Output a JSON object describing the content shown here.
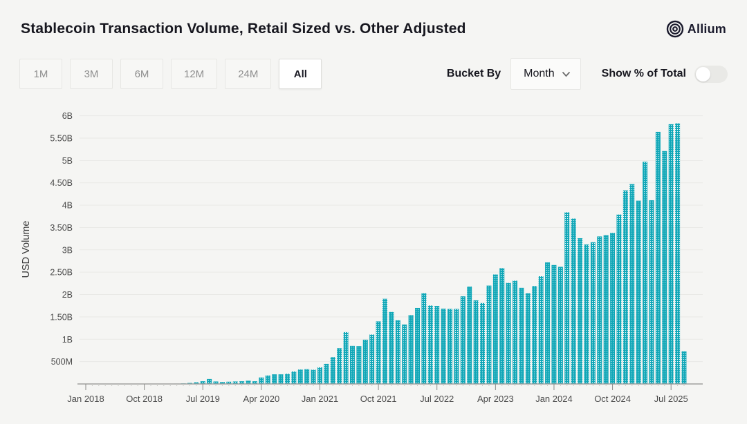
{
  "header": {
    "title": "Stablecoin Transaction Volume, Retail Sized vs. Other Adjusted",
    "logo_text": "Allium"
  },
  "controls": {
    "range_buttons": [
      {
        "label": "1M",
        "selected": false
      },
      {
        "label": "3M",
        "selected": false
      },
      {
        "label": "6M",
        "selected": false
      },
      {
        "label": "12M",
        "selected": false
      },
      {
        "label": "24M",
        "selected": false
      },
      {
        "label": "All",
        "selected": true
      }
    ],
    "bucket_by_label": "Bucket By",
    "bucket_by_value": "Month",
    "show_pct_label": "Show % of Total",
    "show_pct_toggle_on": false
  },
  "chart_data": {
    "type": "bar",
    "ylabel": "USD Volume",
    "bar_color": "#10a7b7",
    "bar_pattern": "white-dot-grid",
    "grid_color": "#e9e9e6",
    "axis_color": "#a0a09e",
    "label_color": "#4a4a4a",
    "ylim_millions": [
      0,
      6200
    ],
    "x_tick_every": 9,
    "x_tick_labels": [
      "Jan 2018",
      "Oct 2018",
      "Jul 2019",
      "Apr 2020",
      "Jan 2021",
      "Oct 2021",
      "Jul 2022",
      "Apr 2023",
      "Jan 2024",
      "Oct 2024",
      "Jul 2025"
    ],
    "y_ticks": [
      {
        "label": "500M",
        "millions": 500
      },
      {
        "label": "1B",
        "millions": 1000
      },
      {
        "label": "1.50B",
        "millions": 1500
      },
      {
        "label": "2B",
        "millions": 2000
      },
      {
        "label": "2.50B",
        "millions": 2500
      },
      {
        "label": "3B",
        "millions": 3000
      },
      {
        "label": "3.50B",
        "millions": 3500
      },
      {
        "label": "4B",
        "millions": 4000
      },
      {
        "label": "4.50B",
        "millions": 4500
      },
      {
        "label": "5B",
        "millions": 5000
      },
      {
        "label": "5.50B",
        "millions": 5500
      },
      {
        "label": "6B",
        "millions": 6000
      }
    ],
    "categories": [
      "Jan 2018",
      "Feb 2018",
      "Mar 2018",
      "Apr 2018",
      "May 2018",
      "Jun 2018",
      "Jul 2018",
      "Aug 2018",
      "Sep 2018",
      "Oct 2018",
      "Nov 2018",
      "Dec 2018",
      "Jan 2019",
      "Feb 2019",
      "Mar 2019",
      "Apr 2019",
      "May 2019",
      "Jun 2019",
      "Jul 2019",
      "Aug 2019",
      "Sep 2019",
      "Oct 2019",
      "Nov 2019",
      "Dec 2019",
      "Jan 2020",
      "Feb 2020",
      "Mar 2020",
      "Apr 2020",
      "May 2020",
      "Jun 2020",
      "Jul 2020",
      "Aug 2020",
      "Sep 2020",
      "Oct 2020",
      "Nov 2020",
      "Dec 2020",
      "Jan 2021",
      "Feb 2021",
      "Mar 2021",
      "Apr 2021",
      "May 2021",
      "Jun 2021",
      "Jul 2021",
      "Aug 2021",
      "Sep 2021",
      "Oct 2021",
      "Nov 2021",
      "Dec 2021",
      "Jan 2022",
      "Feb 2022",
      "Mar 2022",
      "Apr 2022",
      "May 2022",
      "Jun 2022",
      "Jul 2022",
      "Aug 2022",
      "Sep 2022",
      "Oct 2022",
      "Nov 2022",
      "Dec 2022",
      "Jan 2023",
      "Feb 2023",
      "Mar 2023",
      "Apr 2023",
      "May 2023",
      "Jun 2023",
      "Jul 2023",
      "Aug 2023",
      "Sep 2023",
      "Oct 2023",
      "Nov 2023",
      "Dec 2023",
      "Jan 2024",
      "Feb 2024",
      "Mar 2024",
      "Apr 2024",
      "May 2024",
      "Jun 2024",
      "Jul 2024",
      "Aug 2024",
      "Sep 2024",
      "Oct 2024",
      "Nov 2024",
      "Dec 2024",
      "Jan 2025",
      "Feb 2025",
      "Mar 2025",
      "Apr 2025",
      "May 2025",
      "Jun 2025",
      "Jul 2025",
      "Aug 2025",
      "Sep 2025"
    ],
    "values_millions_usd": [
      1,
      1,
      1,
      2,
      2,
      2,
      2,
      3,
      3,
      3,
      4,
      4,
      5,
      6,
      8,
      12,
      22,
      38,
      60,
      110,
      55,
      45,
      50,
      55,
      60,
      72,
      60,
      145,
      190,
      215,
      215,
      228,
      280,
      325,
      332,
      318,
      372,
      450,
      600,
      800,
      1160,
      852,
      848,
      990,
      1105,
      1400,
      1905,
      1610,
      1425,
      1330,
      1540,
      1700,
      2030,
      1755,
      1745,
      1685,
      1680,
      1680,
      1960,
      2180,
      1870,
      1810,
      2200,
      2450,
      2590,
      2260,
      2310,
      2150,
      2030,
      2190,
      2410,
      2720,
      2660,
      2620,
      3840,
      3700,
      3260,
      3120,
      3170,
      3300,
      3330,
      3380,
      3790,
      4330,
      4470,
      4100,
      4970,
      4110,
      5640,
      5210,
      5810,
      5830,
      730
    ]
  }
}
